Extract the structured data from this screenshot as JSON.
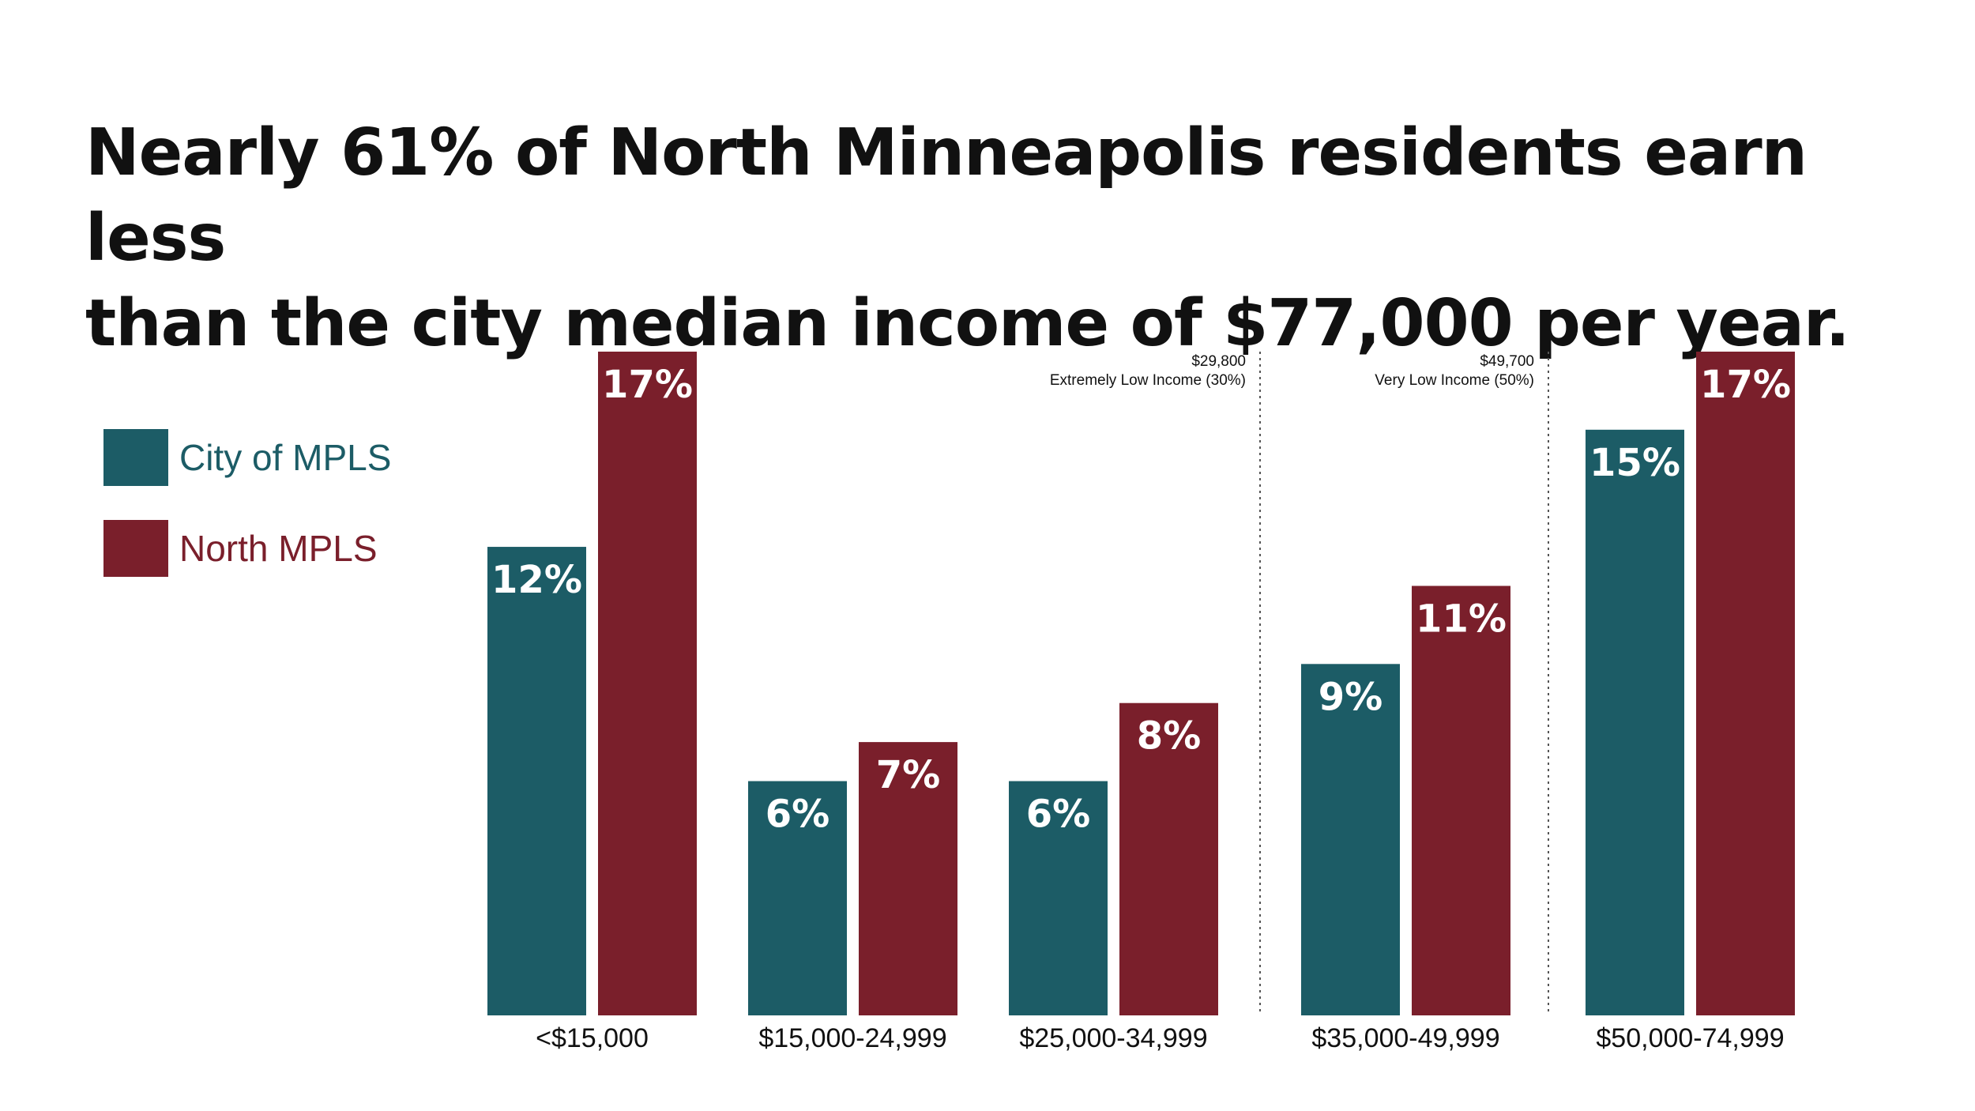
{
  "title_lines": [
    "Nearly 61% of North Minneapolis residents earn less",
    "than the city median income of $77,000 per year."
  ],
  "colors": {
    "city": "#1c5c66",
    "north": "#7a1f2b",
    "text": "#111111",
    "bar_label": "#ffffff"
  },
  "legend": [
    {
      "label": "City of MPLS",
      "color": "#1c5c66"
    },
    {
      "label": "North MPLS",
      "color": "#7a1f2b"
    }
  ],
  "chart_data": {
    "type": "bar",
    "title": "Nearly 61% of North Minneapolis residents earn less than the city median income of $77,000 per year.",
    "categories": [
      "<$15,000",
      "$15,000-24,999",
      "$25,000-34,999",
      "$35,000-49,999",
      "$50,000-74,999"
    ],
    "series": [
      {
        "name": "City of MPLS",
        "values": [
          12,
          6,
          6,
          9,
          15
        ],
        "labels": [
          "12%",
          "6%",
          "6%",
          "9%",
          "15%"
        ]
      },
      {
        "name": "North MPLS",
        "values": [
          17,
          7,
          8,
          11,
          17
        ],
        "labels": [
          "17%",
          "7%",
          "8%",
          "11%",
          "17%"
        ]
      }
    ],
    "ylim": [
      0,
      17
    ],
    "grid": false,
    "legend_position": "left",
    "annotations": [
      {
        "after_category": 2,
        "line1": "$29,800",
        "line2": "Extremely Low Income (30%)"
      },
      {
        "after_category": 3,
        "line1": "$49,700",
        "line2": "Very Low Income (50%)"
      }
    ]
  }
}
